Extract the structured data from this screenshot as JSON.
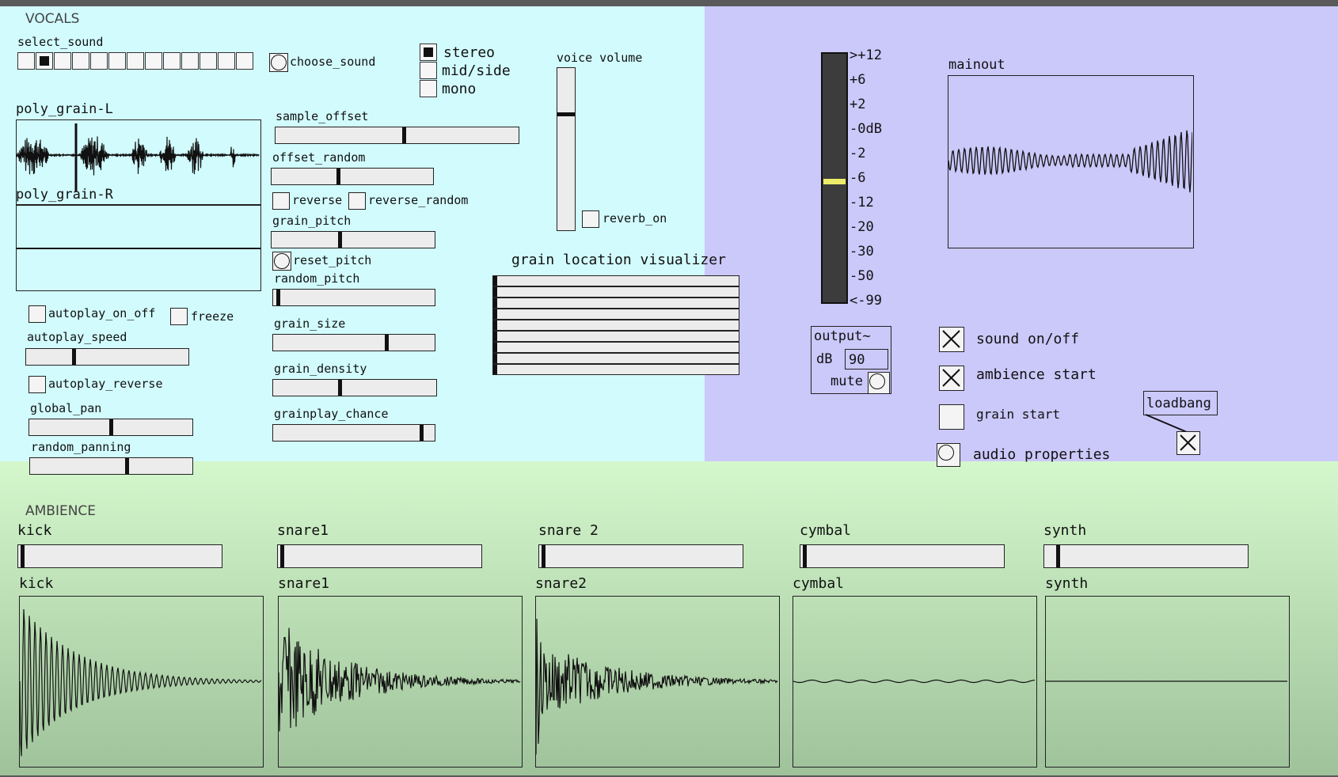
{
  "vocals": {
    "title": "VOCALS",
    "select_sound_label": "select_sound",
    "select_sound_index": 1,
    "choose_sound_label": "choose_sound",
    "mode_options": [
      "stereo",
      "mid/side",
      "mono"
    ],
    "mode_selected": 0,
    "voice_volume_label": "voice volume",
    "voice_volume_value": 0.72,
    "reverb_on_label": "reverb_on",
    "array_l_label": "poly_grain-L",
    "array_r_label": "poly_grain-R",
    "sample_offset_label": "sample_offset",
    "sample_offset_value": 0.53,
    "offset_random_label": "offset_random",
    "offset_random_value": 0.41,
    "reverse_label": "reverse",
    "reverse_random_label": "reverse_random",
    "grain_pitch_label": "grain_pitch",
    "grain_pitch_value": 0.42,
    "reset_pitch_label": "reset_pitch",
    "random_pitch_label": "random_pitch",
    "random_pitch_value": 0.02,
    "grain_size_label": "grain_size",
    "grain_size_value": 0.71,
    "grain_density_label": "grain_density",
    "grain_density_value": 0.41,
    "grainplay_chance_label": "grainplay_chance",
    "grainplay_chance_value": 0.93,
    "autoplay_on_off_label": "autoplay_on_off",
    "freeze_label": "freeze",
    "autoplay_speed_label": "autoplay_speed",
    "autoplay_speed_value": 0.29,
    "autoplay_reverse_label": "autoplay_reverse",
    "global_pan_label": "global_pan",
    "global_pan_value": 0.5,
    "random_panning_label": "random_panning",
    "random_panning_value": 0.6,
    "visualizer_label": "grain location visualizer"
  },
  "master": {
    "meter_labels": [
      ">+12",
      "+6",
      "+2",
      "-0dB",
      "-2",
      "-6",
      "-12",
      "-20",
      "-30",
      "-50",
      "<-99"
    ],
    "meter_level": "-6",
    "mainout_label": "mainout",
    "output_label": "output~",
    "db_label": "dB",
    "db_value": "90",
    "mute_label": "mute",
    "sound_on_off_label": "sound on/off",
    "sound_on_off_checked": true,
    "ambience_start_label": "ambience start",
    "ambience_start_checked": true,
    "grain_start_label": "grain start",
    "grain_start_checked": false,
    "audio_properties_label": "audio properties",
    "loadbang_label": "loadbang",
    "colors": {
      "vocals_bg": "#d2fbfd",
      "master_bg": "#cbc8fa",
      "ambience_top": "#d4f7cc",
      "ambience_bottom": "#9fc29b",
      "meter_yellow": "#ecec6a"
    }
  },
  "ambience": {
    "title": "AMBIENCE",
    "channels": [
      {
        "slider_label": "kick",
        "array_label": "kick",
        "value": 0.01
      },
      {
        "slider_label": "snare1",
        "array_label": "snare1",
        "value": 0.01
      },
      {
        "slider_label": "snare 2",
        "array_label": "snare2",
        "value": 0.01
      },
      {
        "slider_label": "cymbal",
        "array_label": "cymbal",
        "value": 0.01
      },
      {
        "slider_label": "synth",
        "array_label": "synth",
        "value": 0.06
      }
    ]
  }
}
